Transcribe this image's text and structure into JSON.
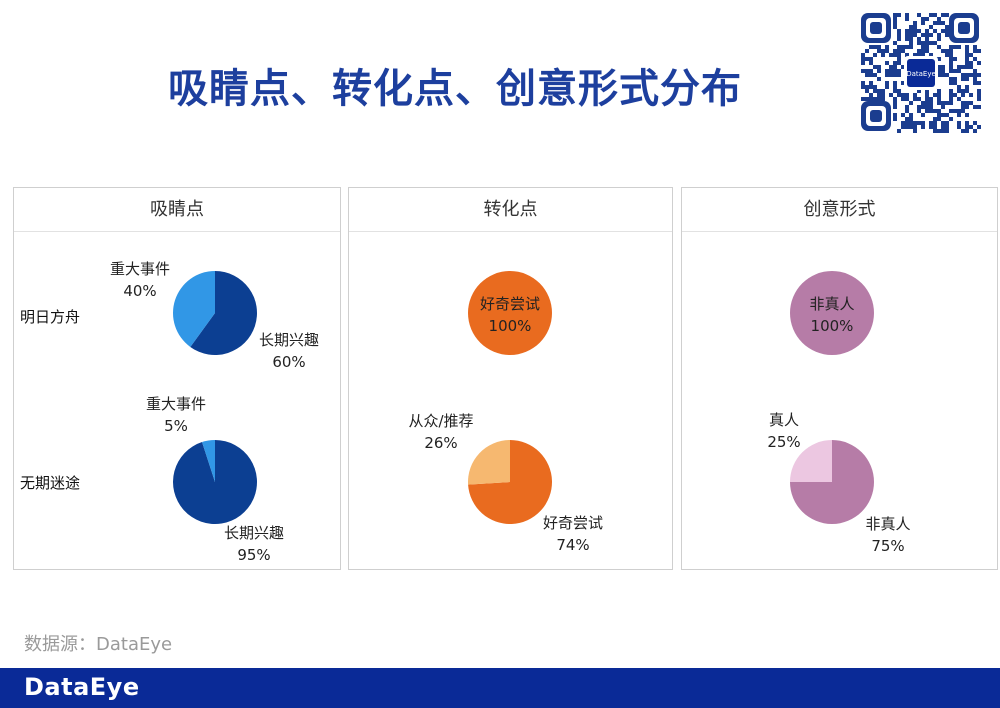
{
  "title": "吸睛点、转化点、创意形式分布",
  "qr_badge": "DataEye",
  "source": "数据源：DataEye",
  "footer_logo": "DataEye",
  "row_labels": [
    "明日方舟",
    "无期迷途"
  ],
  "chart_data": [
    {
      "type": "pie",
      "title": "吸睛点",
      "pies": [
        {
          "game": "明日方舟",
          "slices": [
            {
              "label": "长期兴趣",
              "value": 60,
              "pct": "60%",
              "color": "#0c3f92"
            },
            {
              "label": "重大事件",
              "value": 40,
              "pct": "40%",
              "color": "#3197e6"
            }
          ]
        },
        {
          "game": "无期迷途",
          "slices": [
            {
              "label": "长期兴趣",
              "value": 95,
              "pct": "95%",
              "color": "#0c3f92"
            },
            {
              "label": "重大事件",
              "value": 5,
              "pct": "5%",
              "color": "#3197e6"
            }
          ]
        }
      ]
    },
    {
      "type": "pie",
      "title": "转化点",
      "pies": [
        {
          "game": "明日方舟",
          "slices": [
            {
              "label": "好奇尝试",
              "value": 100,
              "pct": "100%",
              "color": "#e96b1f"
            }
          ]
        },
        {
          "game": "无期迷途",
          "slices": [
            {
              "label": "好奇尝试",
              "value": 74,
              "pct": "74%",
              "color": "#e96b1f"
            },
            {
              "label": "从众/推荐",
              "value": 26,
              "pct": "26%",
              "color": "#f6b870"
            }
          ]
        }
      ]
    },
    {
      "type": "pie",
      "title": "创意形式",
      "pies": [
        {
          "game": "明日方舟",
          "slices": [
            {
              "label": "非真人",
              "value": 100,
              "pct": "100%",
              "color": "#b67ca7"
            }
          ]
        },
        {
          "game": "无期迷途",
          "slices": [
            {
              "label": "非真人",
              "value": 75,
              "pct": "75%",
              "color": "#b67ca7"
            },
            {
              "label": "真人",
              "value": 25,
              "pct": "25%",
              "color": "#ecc7e1"
            }
          ]
        }
      ]
    }
  ]
}
